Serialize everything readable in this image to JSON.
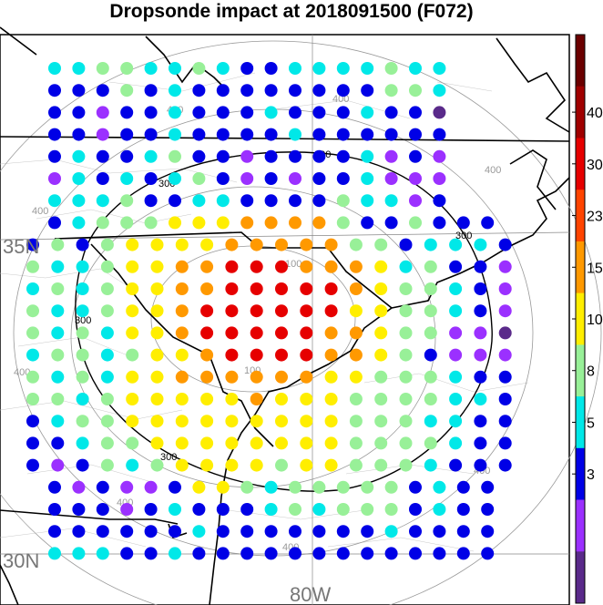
{
  "title": "Dropsonde impact at 2018091500 (F072)",
  "map": {
    "lat_labels": [
      "35N",
      "30N"
    ],
    "lon_labels": [
      "80W"
    ],
    "contour_labels_outer": [
      "400",
      "400",
      "400",
      "400",
      "400",
      "400",
      "400",
      "400"
    ],
    "contour_labels_300": [
      "300",
      "300",
      "300",
      "300",
      "300"
    ],
    "contour_labels_inner": [
      "100",
      "100"
    ]
  },
  "colorbar": {
    "labels": [
      "40",
      "30",
      "23",
      "15",
      "10",
      "8",
      "5",
      "3"
    ],
    "colors": [
      "#6b0000",
      "#a00000",
      "#e60000",
      "#ff4400",
      "#ff9900",
      "#ffee00",
      "#98f098",
      "#00e8e8",
      "#0000e6",
      "#9b30ff",
      "#5a2a8a"
    ]
  },
  "legend_colors": {
    "1": "#5a2a8a",
    "2": "#9b30ff",
    "3": "#0000e6",
    "4": "#00e8e8",
    "5": "#98f098",
    "6": "#ffee00",
    "7": "#ff9900",
    "8": "#e60000"
  },
  "dot_grid": {
    "rows": [
      "44554454334444544",
      "33353433333333554",
      "33233433343334331",
      "33233433334333333",
      "34334533233334232",
      "24343453232334222",
      "44453344333354423",
      "3455566677775335333",
      "35356666777775534443",
      "54456677888777645332",
      "45456677888887655432",
      "54456678888886655432",
      "54546678888877655221",
      "45545667888877653222",
      "54546677777766555433",
      "55456666676665555443",
      "34556666666665554433",
      "33455666666665555433",
      "32354566665665554333",
      "3232236654555553433",
      "3332343334545553433",
      "3333334333333343333",
      "4443343333333333333"
    ]
  }
}
